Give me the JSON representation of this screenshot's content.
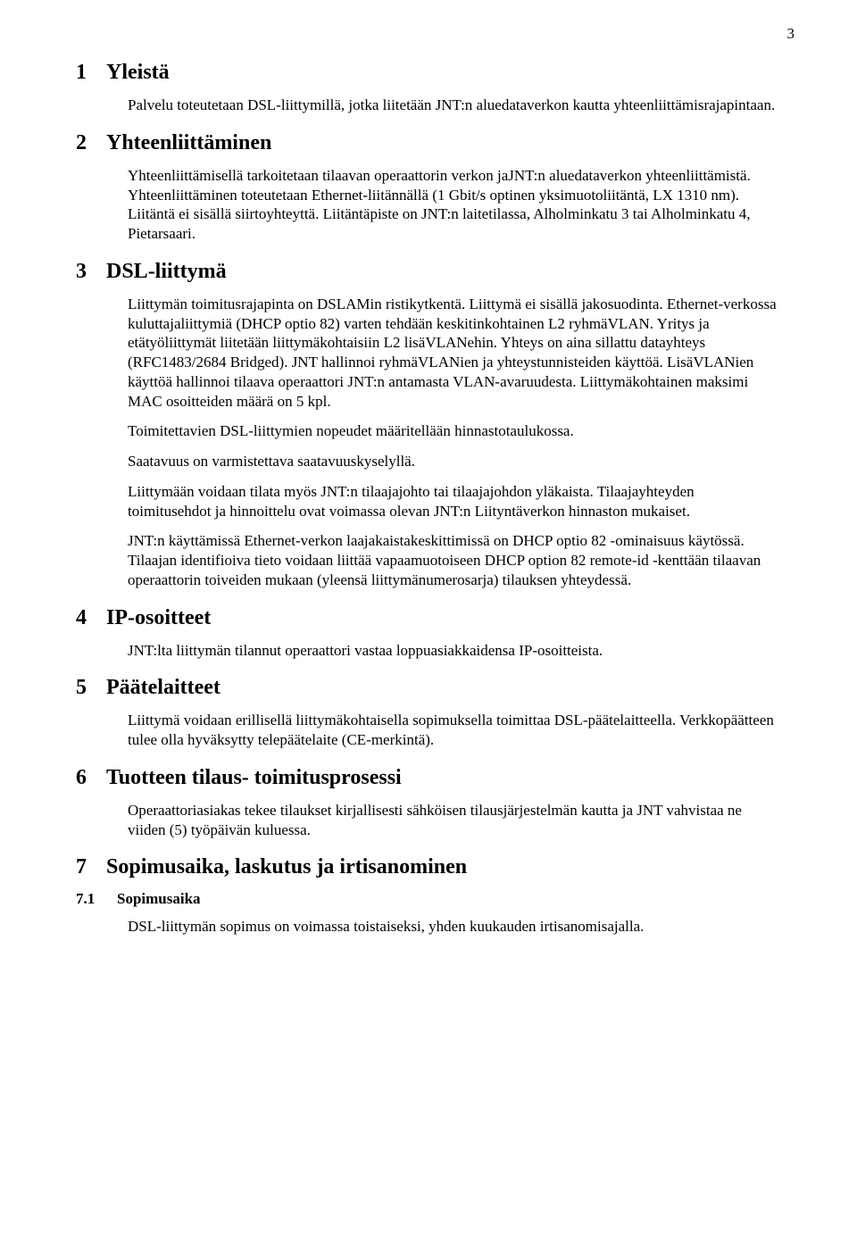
{
  "page_number": "3",
  "sections": [
    {
      "num": "1",
      "title": "Yleistä",
      "paras": [
        "Palvelu toteutetaan DSL-liittymillä, jotka liitetään JNT:n aluedataverkon kautta yhteenliittämisrajapintaan."
      ]
    },
    {
      "num": "2",
      "title": "Yhteenliittäminen",
      "paras": [
        "Yhteenliittämisellä tarkoitetaan tilaavan operaattorin verkon jaJNT:n aluedataverkon yhteenliittämistä. Yhteenliittäminen toteutetaan Ethernet-liitännällä (1 Gbit/s optinen yksimuotoliitäntä, LX 1310 nm). Liitäntä ei sisällä siirtoyhteyttä. Liitäntäpiste on JNT:n laitetilassa, Alholminkatu 3 tai Alholminkatu 4, Pietarsaari."
      ]
    },
    {
      "num": "3",
      "title": "DSL-liittymä",
      "paras": [
        "Liittymän toimitusrajapinta on DSLAMin ristikytkentä. Liittymä ei sisällä jakosuodinta. Ethernet-verkossa kuluttajaliittymiä (DHCP optio 82) varten tehdään keskitinkohtainen L2 ryhmäVLAN. Yritys ja etätyöliittymät liitetään liittymäkohtaisiin L2 lisäVLANehin. Yhteys on aina sillattu datayhteys (RFC1483/2684 Bridged). JNT hallinnoi ryhmäVLANien ja yhteystunnisteiden käyttöä. LisäVLANien käyttöä hallinnoi tilaava operaattori JNT:n antamasta VLAN-avaruudesta. Liittymäkohtainen maksimi MAC osoitteiden määrä on 5 kpl.",
        "Toimitettavien DSL-liittymien nopeudet määritellään hinnastotaulukossa.",
        "Saatavuus on varmistettava saatavuuskyselyllä.",
        "Liittymään voidaan tilata myös JNT:n tilaajajohto tai tilaajajohdon yläkaista. Tilaajayhteyden toimitusehdot ja hinnoittelu ovat voimassa olevan JNT:n Liityntäverkon hinnaston mukaiset.",
        "JNT:n käyttämissä Ethernet-verkon laajakaistakeskittimissä on DHCP optio 82 -ominaisuus käytössä. Tilaajan identifioiva tieto voidaan liittää vapaamuotoiseen DHCP option 82 remote-id -kenttään tilaavan operaattorin toiveiden mukaan (yleensä liittymänumerosarja) tilauksen yhteydessä."
      ]
    },
    {
      "num": "4",
      "title": "IP-osoitteet",
      "paras": [
        "JNT:lta liittymän tilannut operaattori vastaa loppuasiakkaidensa IP-osoitteista."
      ]
    },
    {
      "num": "5",
      "title": "Päätelaitteet",
      "paras": [
        "Liittymä voidaan erillisellä liittymäkohtaisella sopimuksella toimittaa DSL-päätelaitteella. Verkkopäätteen tulee olla hyväksytty telepäätelaite (CE-merkintä)."
      ]
    },
    {
      "num": "6",
      "title": "Tuotteen tilaus- toimitusprosessi",
      "paras": [
        "Operaattoriasiakas tekee tilaukset kirjallisesti sähköisen tilausjärjestelmän kautta ja JNT vahvistaa ne viiden (5) työpäivän kuluessa."
      ]
    },
    {
      "num": "7",
      "title": "Sopimusaika, laskutus ja irtisanominen",
      "paras": [],
      "subsections": [
        {
          "num": "7.1",
          "title": "Sopimusaika",
          "paras": [
            "DSL-liittymän sopimus on voimassa toistaiseksi, yhden kuukauden irtisanomisajalla."
          ]
        }
      ]
    }
  ]
}
